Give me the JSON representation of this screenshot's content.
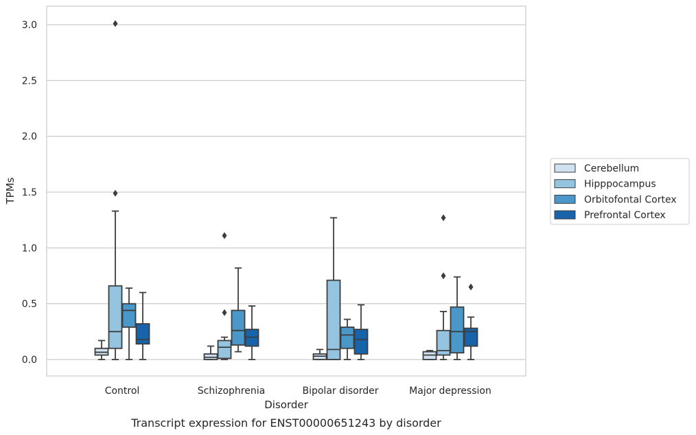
{
  "chart_data": {
    "type": "box",
    "categories": [
      "Control",
      "Schizophrenia",
      "Bipolar disorder",
      "Major depression"
    ],
    "xlabel": "Disorder",
    "ylabel": "TPMs",
    "caption": "Transcript expression for ENST00000651243 by disorder",
    "ylim": [
      -0.15,
      3.17
    ],
    "yticks": [
      0.0,
      0.5,
      1.0,
      1.5,
      2.0,
      2.5,
      3.0
    ],
    "ytick_labels": [
      "0.0",
      "0.5",
      "1.0",
      "1.5",
      "2.0",
      "2.5",
      "3.0"
    ],
    "grid": true,
    "legend_position": "right",
    "series": [
      {
        "name": "Cerebellum",
        "color": "#d0e1f2",
        "boxes": [
          {
            "category": "Control",
            "whisker_low": 0.0,
            "q1": 0.04,
            "median": 0.065,
            "q3": 0.1,
            "whisker_high": 0.17,
            "outliers": []
          },
          {
            "category": "Schizophrenia",
            "whisker_low": 0.0,
            "q1": 0.0,
            "median": 0.02,
            "q3": 0.05,
            "whisker_high": 0.12,
            "outliers": []
          },
          {
            "category": "Bipolar disorder",
            "whisker_low": 0.0,
            "q1": 0.0,
            "median": 0.03,
            "q3": 0.05,
            "whisker_high": 0.09,
            "outliers": []
          },
          {
            "category": "Major depression",
            "whisker_low": 0.0,
            "q1": 0.0,
            "median": 0.04,
            "q3": 0.07,
            "whisker_high": 0.08,
            "outliers": []
          }
        ]
      },
      {
        "name": "Hipppocampus",
        "color": "#94c4df",
        "boxes": [
          {
            "category": "Control",
            "whisker_low": 0.0,
            "q1": 0.1,
            "median": 0.25,
            "q3": 0.66,
            "whisker_high": 1.33,
            "outliers": [
              1.49,
              3.01
            ]
          },
          {
            "category": "Schizophrenia",
            "whisker_low": 0.0,
            "q1": 0.01,
            "median": 0.11,
            "q3": 0.17,
            "whisker_high": 0.2,
            "outliers": [
              0.42,
              1.11
            ]
          },
          {
            "category": "Bipolar disorder",
            "whisker_low": 0.0,
            "q1": 0.0,
            "median": 0.09,
            "q3": 0.71,
            "whisker_high": 1.27,
            "outliers": []
          },
          {
            "category": "Major depression",
            "whisker_low": 0.0,
            "q1": 0.04,
            "median": 0.08,
            "q3": 0.26,
            "whisker_high": 0.43,
            "outliers": [
              0.75,
              1.27
            ]
          }
        ]
      },
      {
        "name": "Orbitofontal Cortex",
        "color": "#4a98c9",
        "boxes": [
          {
            "category": "Control",
            "whisker_low": 0.0,
            "q1": 0.29,
            "median": 0.44,
            "q3": 0.5,
            "whisker_high": 0.64,
            "outliers": []
          },
          {
            "category": "Schizophrenia",
            "whisker_low": 0.07,
            "q1": 0.13,
            "median": 0.26,
            "q3": 0.44,
            "whisker_high": 0.82,
            "outliers": []
          },
          {
            "category": "Bipolar disorder",
            "whisker_low": 0.0,
            "q1": 0.1,
            "median": 0.22,
            "q3": 0.29,
            "whisker_high": 0.36,
            "outliers": []
          },
          {
            "category": "Major depression",
            "whisker_low": 0.0,
            "q1": 0.06,
            "median": 0.25,
            "q3": 0.47,
            "whisker_high": 0.74,
            "outliers": []
          }
        ]
      },
      {
        "name": "Prefrontal Cortex",
        "color": "#1764ab",
        "boxes": [
          {
            "category": "Control",
            "whisker_low": 0.0,
            "q1": 0.14,
            "median": 0.18,
            "q3": 0.32,
            "whisker_high": 0.6,
            "outliers": []
          },
          {
            "category": "Schizophrenia",
            "whisker_low": 0.0,
            "q1": 0.12,
            "median": 0.2,
            "q3": 0.27,
            "whisker_high": 0.48,
            "outliers": []
          },
          {
            "category": "Bipolar disorder",
            "whisker_low": 0.0,
            "q1": 0.05,
            "median": 0.18,
            "q3": 0.27,
            "whisker_high": 0.49,
            "outliers": []
          },
          {
            "category": "Major depression",
            "whisker_low": 0.0,
            "q1": 0.12,
            "median": 0.25,
            "q3": 0.28,
            "whisker_high": 0.38,
            "outliers": [
              0.65
            ]
          }
        ]
      }
    ]
  }
}
